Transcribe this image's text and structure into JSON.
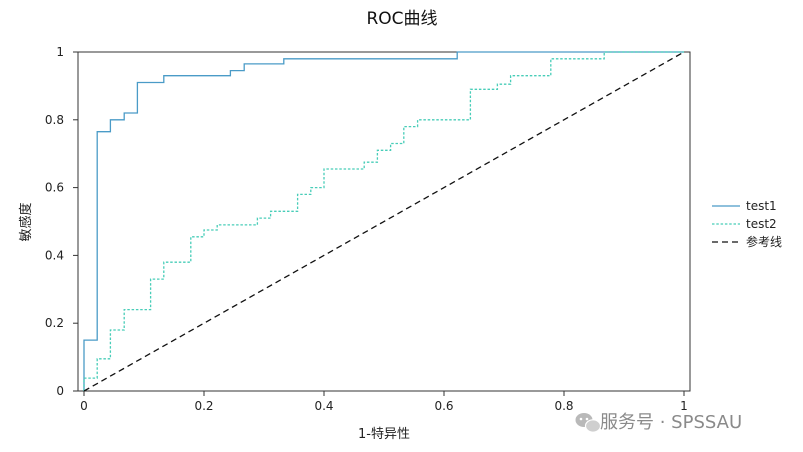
{
  "chart_data": {
    "type": "line",
    "title": "ROC曲线",
    "xlabel": "1-特异性",
    "ylabel": "敏感度",
    "xlim": [
      0,
      1
    ],
    "ylim": [
      0,
      1
    ],
    "x_ticks": [
      "0",
      "0.2",
      "0.4",
      "0.6",
      "0.8",
      "1"
    ],
    "y_ticks": [
      "0",
      "0.2",
      "0.4",
      "0.6",
      "0.8",
      "1"
    ],
    "grid": false,
    "legend_position": "right",
    "series": [
      {
        "name": "test1",
        "style": "solid",
        "color": "#4a9bc7",
        "points": [
          [
            0,
            0
          ],
          [
            0,
            0.15
          ],
          [
            0.022,
            0.15
          ],
          [
            0.022,
            0.765
          ],
          [
            0.044,
            0.765
          ],
          [
            0.044,
            0.8
          ],
          [
            0.067,
            0.8
          ],
          [
            0.067,
            0.82
          ],
          [
            0.089,
            0.82
          ],
          [
            0.089,
            0.91
          ],
          [
            0.133,
            0.91
          ],
          [
            0.133,
            0.93
          ],
          [
            0.244,
            0.93
          ],
          [
            0.244,
            0.945
          ],
          [
            0.267,
            0.945
          ],
          [
            0.267,
            0.965
          ],
          [
            0.333,
            0.965
          ],
          [
            0.333,
            0.98
          ],
          [
            0.622,
            0.98
          ],
          [
            0.622,
            1
          ],
          [
            1,
            1
          ]
        ]
      },
      {
        "name": "test2",
        "style": "dotted",
        "color": "#48cdb8",
        "points": [
          [
            0,
            0
          ],
          [
            0,
            0.038
          ],
          [
            0.022,
            0.038
          ],
          [
            0.022,
            0.095
          ],
          [
            0.044,
            0.095
          ],
          [
            0.044,
            0.18
          ],
          [
            0.067,
            0.18
          ],
          [
            0.067,
            0.24
          ],
          [
            0.111,
            0.24
          ],
          [
            0.111,
            0.33
          ],
          [
            0.133,
            0.33
          ],
          [
            0.133,
            0.38
          ],
          [
            0.178,
            0.38
          ],
          [
            0.178,
            0.455
          ],
          [
            0.2,
            0.455
          ],
          [
            0.2,
            0.475
          ],
          [
            0.222,
            0.475
          ],
          [
            0.222,
            0.49
          ],
          [
            0.289,
            0.49
          ],
          [
            0.289,
            0.51
          ],
          [
            0.311,
            0.51
          ],
          [
            0.311,
            0.53
          ],
          [
            0.356,
            0.53
          ],
          [
            0.356,
            0.58
          ],
          [
            0.378,
            0.58
          ],
          [
            0.378,
            0.6
          ],
          [
            0.4,
            0.6
          ],
          [
            0.4,
            0.655
          ],
          [
            0.467,
            0.655
          ],
          [
            0.467,
            0.675
          ],
          [
            0.489,
            0.675
          ],
          [
            0.489,
            0.71
          ],
          [
            0.511,
            0.71
          ],
          [
            0.511,
            0.73
          ],
          [
            0.533,
            0.73
          ],
          [
            0.533,
            0.78
          ],
          [
            0.556,
            0.78
          ],
          [
            0.556,
            0.8
          ],
          [
            0.644,
            0.8
          ],
          [
            0.644,
            0.89
          ],
          [
            0.689,
            0.89
          ],
          [
            0.689,
            0.905
          ],
          [
            0.711,
            0.905
          ],
          [
            0.711,
            0.93
          ],
          [
            0.778,
            0.93
          ],
          [
            0.778,
            0.98
          ],
          [
            0.867,
            0.98
          ],
          [
            0.867,
            1
          ],
          [
            1,
            1
          ]
        ]
      },
      {
        "name": "参考线",
        "style": "dashed",
        "color": "#111111",
        "points": [
          [
            0,
            0
          ],
          [
            1,
            1
          ]
        ]
      }
    ]
  },
  "watermark": {
    "icon": "wechat-icon",
    "text": "服务号 · SPSSAU"
  }
}
